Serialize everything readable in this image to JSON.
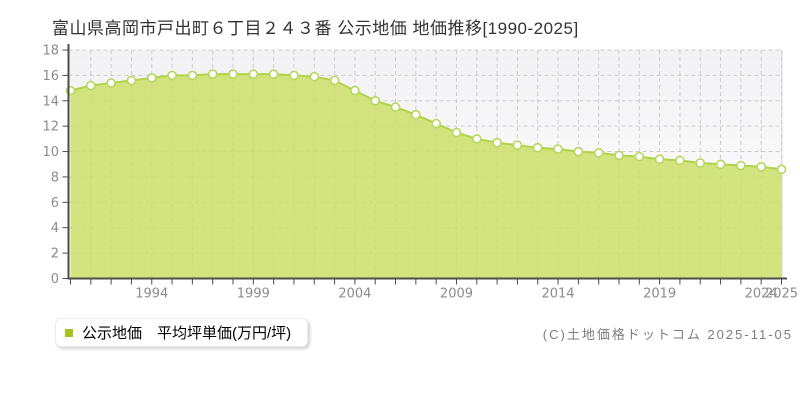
{
  "page": {
    "title": "富山県高岡市戸出町６丁目２４３番 公示地価 地価推移[1990-2025]",
    "copyright": "(C)土地価格ドットコム 2025-11-05"
  },
  "legend": {
    "label": "公示地価　平均坪単価(万円/坪)",
    "marker_color": "#a6c41d"
  },
  "chart_data": {
    "type": "area",
    "title": "富山県高岡市戸出町６丁目２４３番 公示地価 地価推移[1990-2025]",
    "xlabel": "",
    "ylabel": "平均坪単価(万円/坪)",
    "x": [
      1990,
      1991,
      1992,
      1993,
      1994,
      1995,
      1996,
      1997,
      1998,
      1999,
      2000,
      2001,
      2002,
      2003,
      2004,
      2005,
      2006,
      2007,
      2008,
      2009,
      2010,
      2011,
      2012,
      2013,
      2014,
      2015,
      2016,
      2017,
      2018,
      2019,
      2020,
      2021,
      2022,
      2023,
      2024,
      2025
    ],
    "series": [
      {
        "name": "公示地価 平均坪単価(万円/坪)",
        "values": [
          14.8,
          15.2,
          15.4,
          15.6,
          15.8,
          16.0,
          16.0,
          16.1,
          16.1,
          16.1,
          16.1,
          16.0,
          15.9,
          15.6,
          14.8,
          14.0,
          13.5,
          12.9,
          12.2,
          11.5,
          11.0,
          10.7,
          10.5,
          10.3,
          10.2,
          10.0,
          9.9,
          9.7,
          9.6,
          9.4,
          9.3,
          9.1,
          9.0,
          8.9,
          8.8,
          8.6
        ]
      }
    ],
    "ylim": [
      0,
      18
    ],
    "ytick_step": 2,
    "xtick_labels": [
      1994,
      1999,
      2004,
      2009,
      2014,
      2019,
      2024,
      2025
    ],
    "grid": true,
    "grid_style": "dashed",
    "legend_position": "bottom-left",
    "colors": {
      "area_fill": "#cbdf68",
      "area_fill_opacity": 0.85,
      "area_line": "#b2d348",
      "marker_fill": "#ffffff",
      "marker_stroke": "#b7d75e",
      "grid": "#cdcdcd",
      "axis": "#4d4d4d",
      "tick_label": "#8c8c8c",
      "plot_border_right": "#d9d9d9",
      "plot_bg_top": "#f2f2f4",
      "plot_bg_bottom": "#ffffff"
    }
  }
}
